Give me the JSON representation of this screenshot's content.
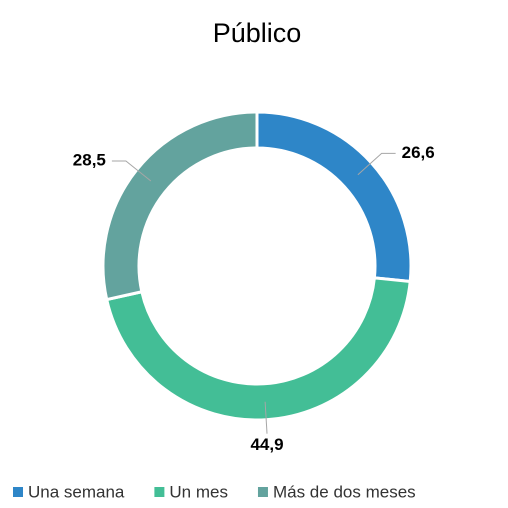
{
  "chart_data": {
    "type": "donut",
    "title": "Público",
    "categories": [
      "Una semana",
      "Un mes",
      "Más de dos meses"
    ],
    "values": [
      26.6,
      44.9,
      28.5
    ],
    "value_labels": [
      "26,6",
      "44,9",
      "28,5"
    ],
    "colors": [
      "#2e86c8",
      "#43be96",
      "#63a39e"
    ],
    "legend": "bottom"
  }
}
